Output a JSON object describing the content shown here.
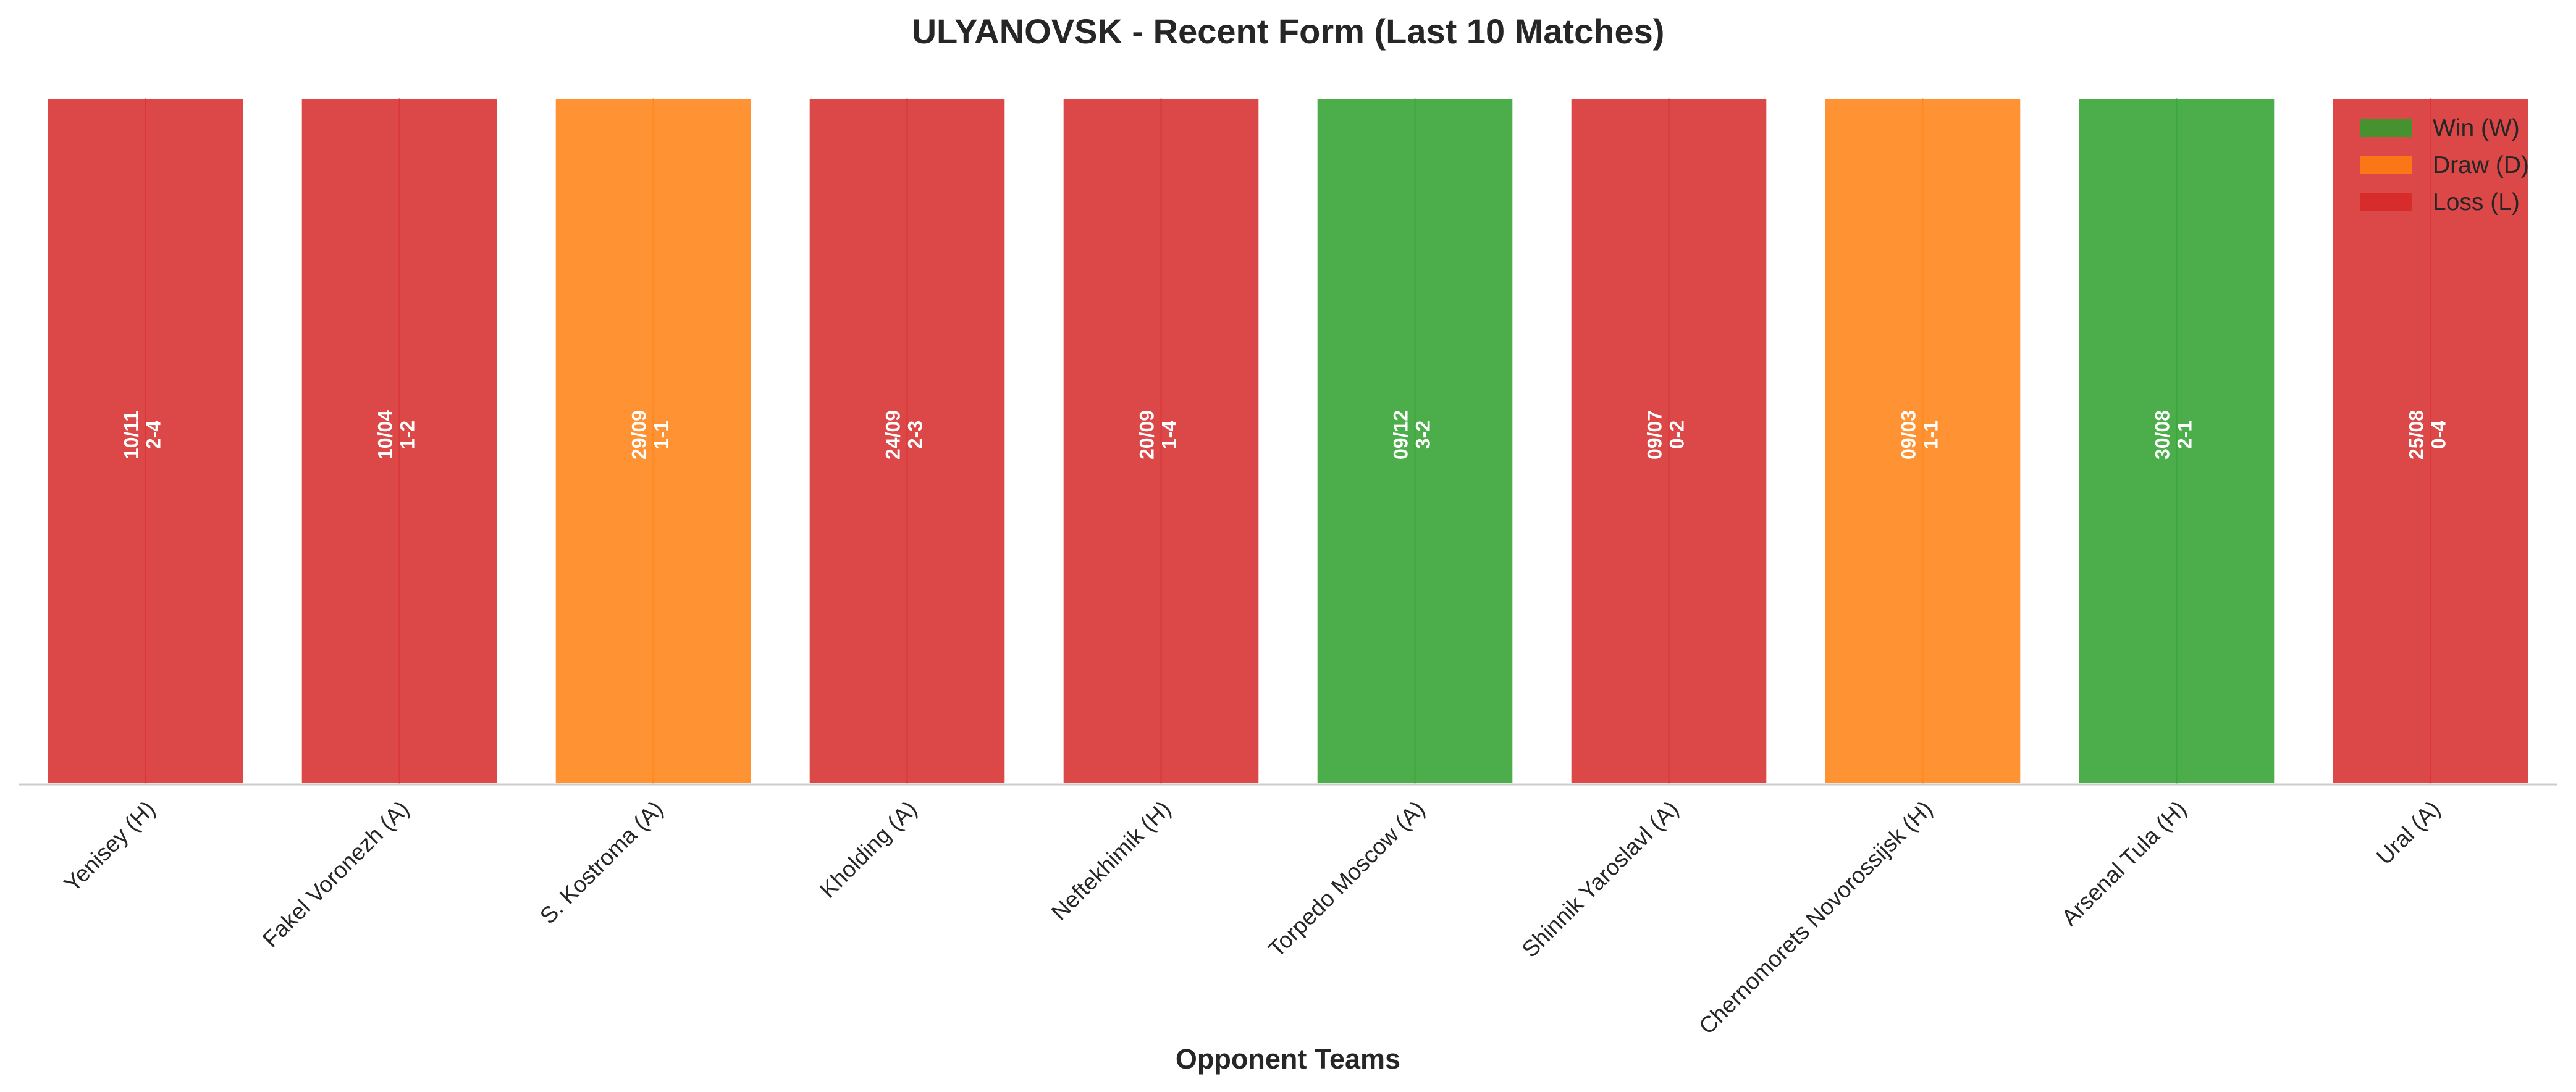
{
  "chart_data": {
    "type": "bar",
    "title": "ULYANOVSK - Recent Form (Last 10 Matches)",
    "xlabel": "Opponent Teams",
    "ylabel": "",
    "ylim": [
      0,
      1
    ],
    "grid": false,
    "legend_position": "top-right",
    "categories": [
      "Yenisey (H)",
      "Fakel Voronezh (A)",
      "S. Kostroma (A)",
      "Kholding (A)",
      "Neftekhimik (H)",
      "Torpedo Moscow (A)",
      "Shinnik Yaroslavl (A)",
      "Chernomorets Novorossijsk (H)",
      "Arsenal Tula (H)",
      "Ural (A)"
    ],
    "values": [
      1,
      1,
      1,
      1,
      1,
      1,
      1,
      1,
      1,
      1
    ],
    "results": [
      "L",
      "L",
      "D",
      "L",
      "L",
      "W",
      "L",
      "D",
      "W",
      "L"
    ],
    "dates": [
      "10/11",
      "10/04",
      "29/09",
      "24/09",
      "20/09",
      "09/12",
      "09/07",
      "09/03",
      "30/08",
      "25/08"
    ],
    "scores": [
      "2-4",
      "1-2",
      "1-1",
      "2-3",
      "1-4",
      "3-2",
      "0-2",
      "1-1",
      "2-1",
      "0-4"
    ],
    "colors": {
      "W": "#2ca02c",
      "D": "#ff7f0e",
      "L": "#d62728"
    },
    "legend": [
      {
        "key": "W",
        "label": "Win (W)"
      },
      {
        "key": "D",
        "label": "Draw (D)"
      },
      {
        "key": "L",
        "label": "Loss (L)"
      }
    ]
  }
}
